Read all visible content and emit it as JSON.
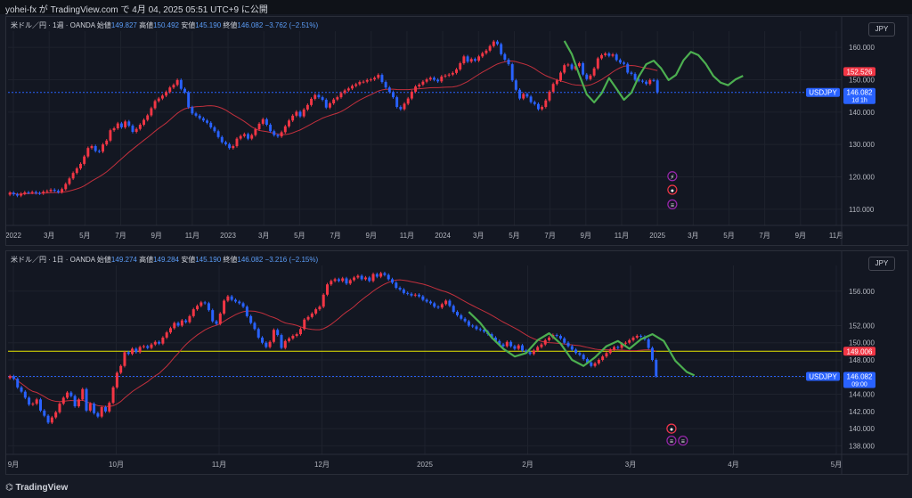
{
  "header": {
    "text": "yohei-fx が TradingView.com で 4月 04, 2025 05:51 UTC+9 に公開"
  },
  "footer": {
    "brand": "TradingView"
  },
  "colors": {
    "up": "#f23645",
    "down": "#2962ff",
    "ma": "#c2303d",
    "wave": "#4caf50",
    "yellow_line": "#e6e600",
    "blue_line": "#2962ff"
  },
  "chart_data": [
    {
      "type": "candlestick",
      "symbol": "USDJPY",
      "title": "米ドル／円 · 1週 · OANDA",
      "ohlc_labels": {
        "open": "始値",
        "high": "高値",
        "low": "安値",
        "close": "終値"
      },
      "ohlc_values": {
        "open": "149.827",
        "high": "150.492",
        "low": "145.190",
        "close": "146.082",
        "change": "−3.762 (−2.51%)"
      },
      "currency_button": "JPY",
      "ylim": [
        105,
        165
      ],
      "y_ticks": [
        110,
        120,
        130,
        140,
        150,
        160
      ],
      "y_tick_labels": [
        "110.000",
        "120.000",
        "130.000",
        "140.000",
        "150.000",
        "160.000"
      ],
      "x_ticks": [
        "2022",
        "3月",
        "5月",
        "7月",
        "9月",
        "11月",
        "2023",
        "3月",
        "5月",
        "7月",
        "9月",
        "11月",
        "2024",
        "3月",
        "5月",
        "7月",
        "9月",
        "11月",
        "2025",
        "3月",
        "5月",
        "7月",
        "9月",
        "11月"
      ],
      "price_labels": [
        {
          "value": 152.526,
          "text": "152.526",
          "color": "#f23645"
        },
        {
          "value": 146.082,
          "text": "USDJPY",
          "color": "#2962ff"
        },
        {
          "value": 146.082,
          "text": "146.082",
          "sub": "1d 1h",
          "color": "#2962ff"
        }
      ],
      "horizontal_lines": [
        {
          "value": 146.082,
          "color": "#2962ff"
        }
      ],
      "close_series": [
        115.1,
        114.6,
        114.2,
        114.8,
        115.2,
        115.1,
        115.3,
        115.0,
        114.9,
        115.4,
        115.6,
        116.0,
        115.7,
        115.3,
        116.2,
        117.8,
        119.5,
        121.2,
        122.6,
        124.0,
        126.3,
        128.9,
        129.5,
        128.0,
        127.8,
        130.0,
        131.2,
        134.4,
        135.0,
        136.5,
        135.3,
        137.1,
        135.8,
        133.9,
        134.8,
        136.1,
        137.6,
        139.0,
        141.2,
        143.4,
        144.2,
        145.1,
        146.2,
        147.6,
        148.4,
        149.9,
        147.2,
        146.1,
        141.5,
        139.6,
        138.9,
        138.1,
        137.4,
        136.7,
        135.3,
        134.1,
        132.3,
        130.7,
        130.1,
        128.9,
        129.5,
        131.8,
        132.6,
        133.2,
        131.8,
        132.9,
        134.7,
        136.4,
        137.8,
        136.1,
        134.1,
        132.9,
        132.5,
        133.8,
        135.6,
        137.4,
        138.9,
        140.1,
        138.7,
        140.8,
        142.2,
        144.1,
        145.3,
        144.6,
        143.8,
        141.4,
        142.7,
        143.9,
        144.6,
        145.9,
        146.7,
        147.3,
        148.1,
        148.6,
        149.3,
        149.4,
        149.9,
        150.1,
        150.6,
        151.5,
        149.3,
        147.6,
        146.2,
        144.6,
        141.6,
        140.9,
        142.6,
        144.2,
        146.3,
        147.9,
        148.5,
        149.4,
        150.1,
        150.6,
        150.0,
        149.5,
        151.0,
        151.3,
        151.6,
        152.1,
        153.2,
        155.1,
        157.2,
        155.6,
        156.4,
        155.9,
        157.2,
        158.2,
        159.0,
        160.4,
        161.8,
        161.0,
        157.9,
        156.2,
        154.8,
        149.8,
        146.9,
        144.2,
        145.6,
        144.8,
        143.1,
        142.5,
        140.9,
        141.6,
        143.6,
        146.3,
        148.7,
        149.8,
        152.2,
        154.5,
        154.7,
        153.3,
        154.2,
        155.1,
        151.6,
        150.2,
        151.3,
        153.5,
        156.6,
        157.6,
        158.1,
        157.4,
        157.8,
        156.1,
        155.3,
        154.9,
        152.2,
        151.8,
        150.0,
        149.7,
        149.4,
        148.7,
        149.9,
        149.8,
        146.1
      ],
      "waves": [
        [
          [
            149,
            162.0
          ],
          [
            151,
            157.9
          ],
          [
            153,
            151.5
          ],
          [
            155,
            145.5
          ],
          [
            157,
            143.0
          ],
          [
            159,
            145.8
          ],
          [
            161,
            150.5
          ],
          [
            163,
            147.2
          ],
          [
            165,
            143.8
          ],
          [
            167,
            146.0
          ],
          [
            169,
            151.0
          ],
          [
            171,
            154.8
          ],
          [
            173,
            155.9
          ],
          [
            175,
            153.5
          ],
          [
            177,
            149.9
          ],
          [
            179,
            151.5
          ],
          [
            181,
            156.0
          ],
          [
            183,
            158.6
          ],
          [
            185,
            157.6
          ],
          [
            187,
            154.9
          ],
          [
            189,
            151.2
          ],
          [
            191,
            149.1
          ],
          [
            193,
            148.3
          ],
          [
            195,
            150.1
          ],
          [
            197,
            151.2
          ]
        ]
      ],
      "event_icons": [
        {
          "kind": "lightning",
          "value": 120.2,
          "glyph": "⚡"
        },
        {
          "kind": "target",
          "value": 116.0,
          "glyph": "●"
        },
        {
          "kind": "flag",
          "value": 111.5,
          "glyph": "≡"
        }
      ]
    },
    {
      "type": "candlestick",
      "symbol": "USDJPY",
      "title": "米ドル／円 · 1日 · OANDA",
      "ohlc_labels": {
        "open": "始値",
        "high": "高値",
        "low": "安値",
        "close": "終値"
      },
      "ohlc_values": {
        "open": "149.274",
        "high": "149.284",
        "low": "145.190",
        "close": "146.082",
        "change": "−3.216 (−2.15%)"
      },
      "currency_button": "JPY",
      "ylim": [
        137,
        159
      ],
      "y_ticks": [
        138,
        140,
        142,
        144,
        146,
        148,
        150,
        152,
        156
      ],
      "y_tick_labels": [
        "138.000",
        "140.000",
        "142.000",
        "144.000",
        "146.000",
        "148.000",
        "150.000",
        "152.000",
        "156.000"
      ],
      "x_ticks": [
        "9月",
        "10月",
        "11月",
        "12月",
        "2025",
        "2月",
        "3月",
        "4月",
        "5月"
      ],
      "price_labels": [
        {
          "value": 149.006,
          "text": "149.006",
          "color": "#f23645"
        },
        {
          "value": 146.082,
          "text": "USDJPY",
          "color": "#2962ff"
        },
        {
          "value": 146.082,
          "text": "146.082",
          "sub": "09:00",
          "color": "#2962ff"
        }
      ],
      "horizontal_lines": [
        {
          "value": 149.006,
          "color": "#e6e600"
        },
        {
          "value": 146.082,
          "color": "#2962ff"
        }
      ],
      "close_series": [
        146.1,
        145.8,
        144.8,
        144.3,
        143.6,
        142.8,
        142.9,
        143.4,
        142.1,
        141.5,
        140.7,
        141.3,
        141.9,
        142.9,
        143.6,
        144.2,
        143.8,
        142.6,
        143.4,
        144.6,
        142.1,
        142.9,
        141.8,
        141.4,
        142.5,
        142.0,
        143.0,
        144.8,
        146.5,
        147.3,
        148.9,
        148.7,
        149.3,
        148.9,
        149.5,
        149.6,
        149.4,
        149.8,
        150.1,
        149.9,
        150.6,
        151.2,
        151.7,
        152.3,
        152.0,
        152.6,
        152.4,
        153.1,
        153.9,
        154.3,
        154.7,
        154.6,
        153.8,
        152.5,
        152.2,
        153.4,
        154.9,
        155.4,
        155.0,
        154.8,
        154.6,
        154.2,
        153.1,
        152.3,
        151.6,
        150.6,
        150.0,
        149.5,
        150.1,
        151.5,
        150.9,
        149.4,
        150.2,
        150.5,
        150.8,
        151.0,
        151.6,
        152.7,
        153.0,
        153.4,
        153.9,
        154.2,
        155.6,
        156.8,
        157.2,
        157.4,
        157.2,
        157.5,
        156.9,
        157.3,
        157.6,
        157.8,
        157.4,
        157.6,
        157.2,
        158.0,
        157.7,
        158.1,
        157.9,
        157.4,
        157.0,
        156.4,
        156.2,
        155.8,
        155.7,
        155.5,
        155.6,
        155.4,
        155.0,
        154.8,
        154.6,
        154.2,
        154.1,
        154.5,
        154.9,
        154.3,
        153.6,
        153.2,
        152.8,
        152.5,
        152.0,
        151.9,
        151.6,
        151.5,
        151.3,
        151.0,
        150.6,
        150.2,
        149.8,
        149.6,
        150.1,
        149.6,
        149.3,
        149.7,
        149.1,
        148.9,
        148.7,
        149.1,
        149.5,
        149.8,
        150.3,
        150.6,
        150.9,
        150.8,
        150.5,
        150.0,
        149.6,
        149.2,
        148.8,
        148.6,
        148.1,
        147.7,
        147.3,
        147.6,
        148.0,
        148.4,
        148.8,
        149.2,
        149.5,
        149.4,
        149.9,
        150.0,
        150.3,
        150.6,
        150.8,
        150.7,
        150.4,
        149.4,
        148.0,
        146.1
      ],
      "waves": [
        [
          [
            120,
            153.6
          ],
          [
            123,
            152.3
          ],
          [
            126,
            150.6
          ],
          [
            129,
            149.3
          ],
          [
            132,
            148.4
          ],
          [
            135,
            148.8
          ],
          [
            138,
            150.3
          ],
          [
            141,
            151.1
          ],
          [
            144,
            149.9
          ],
          [
            147,
            148.0
          ],
          [
            150,
            147.3
          ],
          [
            153,
            148.3
          ],
          [
            156,
            149.6
          ],
          [
            159,
            150.2
          ],
          [
            162,
            149.3
          ],
          [
            165,
            150.4
          ],
          [
            168,
            151.0
          ],
          [
            171,
            150.2
          ],
          [
            174,
            147.9
          ],
          [
            177,
            146.6
          ],
          [
            179,
            146.2
          ]
        ]
      ],
      "event_icons": [
        {
          "kind": "lightning",
          "value": 140.0,
          "glyph": "⚡"
        },
        {
          "kind": "target",
          "value": 140.0,
          "glyph": "●"
        },
        {
          "kind": "flag",
          "value": 138.6,
          "glyph": "≡"
        },
        {
          "kind": "flag",
          "value": 138.6,
          "glyph": "≡"
        }
      ]
    }
  ]
}
